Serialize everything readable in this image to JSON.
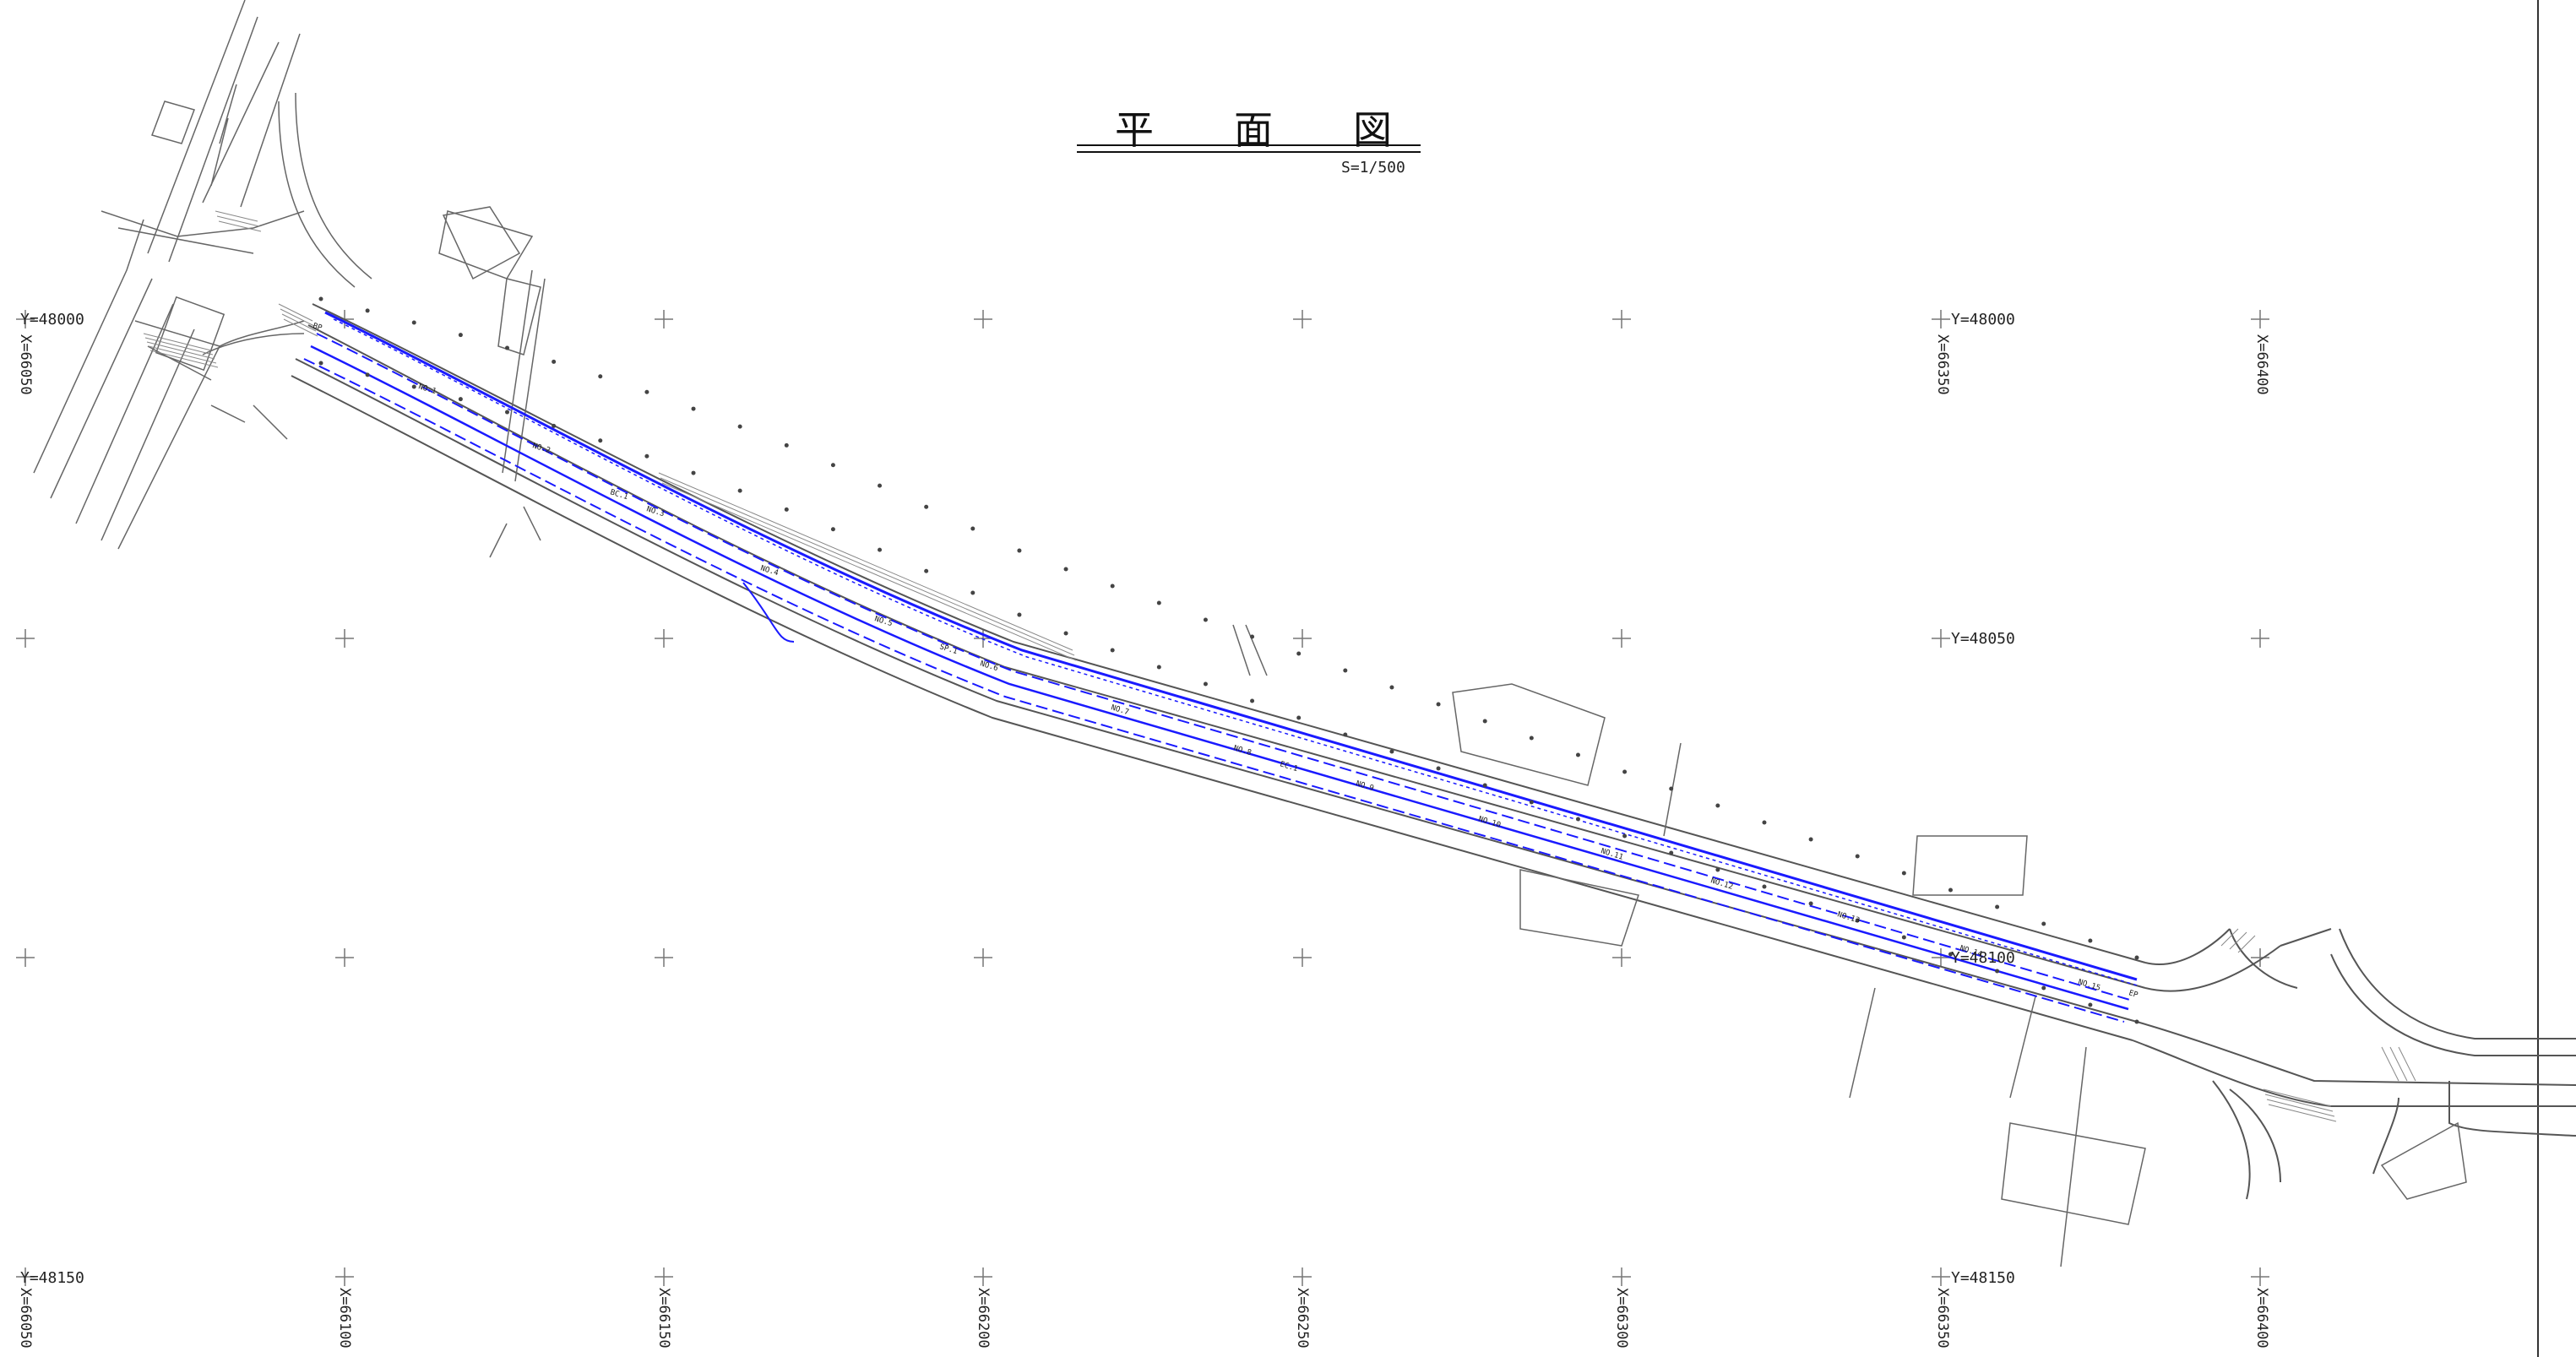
{
  "title": {
    "chars": [
      "平",
      "面",
      "図"
    ]
  },
  "scale_label": "S=1/500",
  "grid": {
    "y_labels": [
      "Y=48000",
      "Y=48000",
      "Y=48050",
      "Y=48100",
      "Y=48150",
      "Y=48150"
    ],
    "x_labels": [
      "X=66050",
      "X=66350",
      "X=66400",
      "X=66050",
      "X=66100",
      "X=66150",
      "X=66200",
      "X=66250",
      "X=66300",
      "X=66350",
      "X=66400"
    ]
  },
  "stations": [
    "NO.1",
    "NO.2",
    "NO.3",
    "NO.4",
    "NO.5",
    "NO.6",
    "NO.7",
    "NO.8",
    "NO.9",
    "NO.10",
    "NO.11",
    "NO.12",
    "NO.13",
    "NO.14",
    "NO.15",
    "BP",
    "EP",
    "BC.1",
    "EC.1",
    "SP.1"
  ],
  "colors": {
    "centerline": "#1a1aff",
    "linework": "#555555",
    "background": "#ffffff"
  }
}
